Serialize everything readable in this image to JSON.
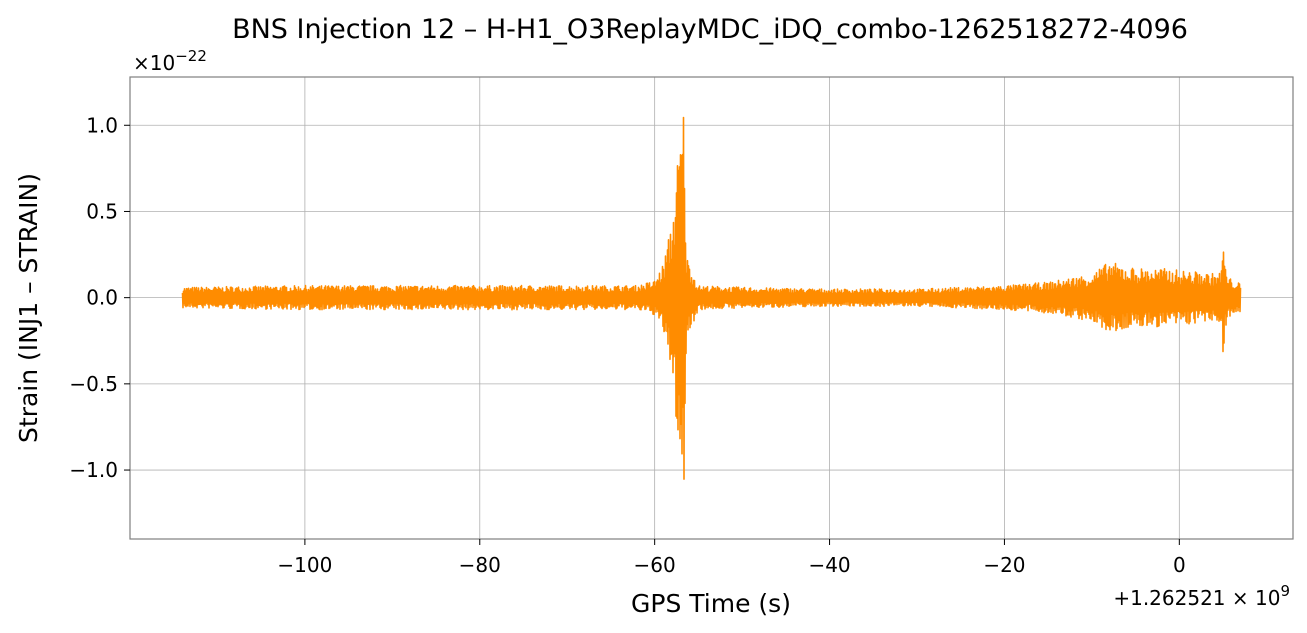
{
  "chart_data": {
    "type": "line",
    "title": "BNS Injection 12 – H-H1_O3ReplayMDC_iDQ_combo-1262518272-4096",
    "xlabel": "GPS Time (s)",
    "ylabel": "Strain (INJ1 – STRAIN)",
    "y_multiplier_label": "×10",
    "y_multiplier_exponent": "−22",
    "x_offset_label": "+1.262521 × 10",
    "x_offset_exponent": "9",
    "xlim": [
      -120,
      13
    ],
    "ylim": [
      -1.4,
      1.28
    ],
    "x_ticks": [
      {
        "value": -100,
        "label": "−100"
      },
      {
        "value": -80,
        "label": "−80"
      },
      {
        "value": -60,
        "label": "−60"
      },
      {
        "value": -40,
        "label": "−40"
      },
      {
        "value": -20,
        "label": "−20"
      },
      {
        "value": 0,
        "label": "0"
      }
    ],
    "y_ticks": [
      {
        "value": 1.0,
        "label": "1.0"
      },
      {
        "value": 0.5,
        "label": "0.5"
      },
      {
        "value": 0.0,
        "label": "0.0"
      },
      {
        "value": -0.5,
        "label": "−0.5"
      },
      {
        "value": -1.0,
        "label": "−1.0"
      }
    ],
    "grid": true,
    "series": [
      {
        "color": "#ff8c00",
        "x_range": [
          -114,
          7
        ],
        "envelope": {
          "x": [
            -114,
            -100,
            -80,
            -62,
            -60,
            -59,
            -58,
            -57.5,
            -57,
            -56.6,
            -56.4,
            -55,
            -50,
            -40,
            -30,
            -25,
            -20,
            -15,
            -10,
            -8,
            -6,
            -4,
            -2,
            0,
            2,
            4,
            4.8,
            5,
            5.2,
            5.5,
            7
          ],
          "upper": [
            0.06,
            0.07,
            0.07,
            0.07,
            0.1,
            0.2,
            0.45,
            0.75,
            1.0,
            1.16,
            0.25,
            0.07,
            0.06,
            0.05,
            0.05,
            0.06,
            0.07,
            0.09,
            0.14,
            0.21,
            0.18,
            0.17,
            0.17,
            0.16,
            0.15,
            0.14,
            0.15,
            0.39,
            0.2,
            0.12,
            0.08
          ],
          "lower": [
            -0.06,
            -0.07,
            -0.07,
            -0.07,
            -0.1,
            -0.2,
            -0.45,
            -0.75,
            -1.0,
            -1.27,
            -0.25,
            -0.07,
            -0.06,
            -0.05,
            -0.05,
            -0.06,
            -0.07,
            -0.09,
            -0.14,
            -0.21,
            -0.18,
            -0.17,
            -0.17,
            -0.16,
            -0.15,
            -0.14,
            -0.15,
            -0.35,
            -0.2,
            -0.12,
            -0.08
          ]
        }
      }
    ]
  }
}
